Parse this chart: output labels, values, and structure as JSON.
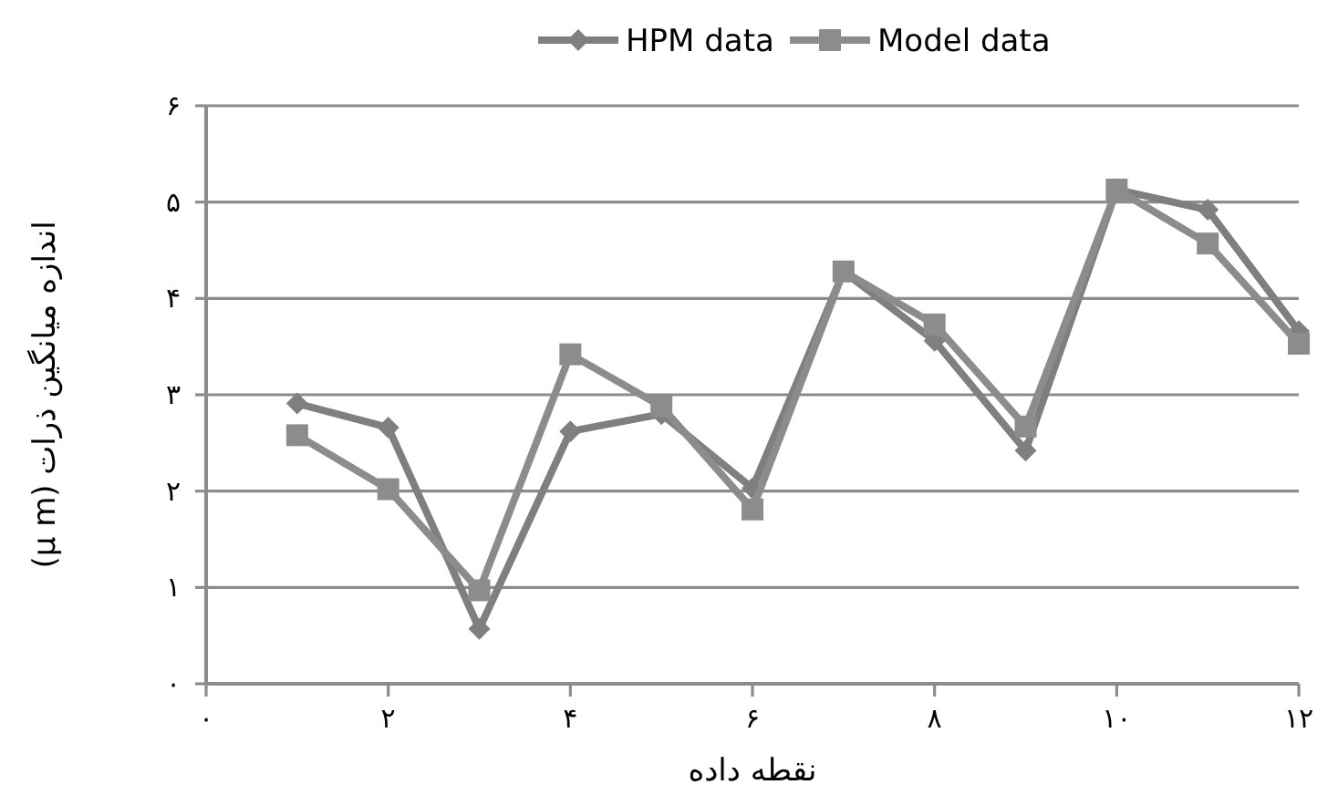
{
  "chart_data": {
    "type": "line",
    "x": [
      1,
      2,
      3,
      4,
      5,
      6,
      7,
      8,
      9,
      10,
      11,
      12
    ],
    "series": [
      {
        "name": "HPM data",
        "color": "#7f7f7f",
        "marker": "diamond",
        "values": [
          2.91,
          2.66,
          0.57,
          2.62,
          2.8,
          2.03,
          4.28,
          3.56,
          2.42,
          5.13,
          4.92,
          3.66
        ]
      },
      {
        "name": "Model data",
        "color": "#8c8c8c",
        "marker": "square",
        "values": [
          2.58,
          2.02,
          0.97,
          3.42,
          2.88,
          1.81,
          4.28,
          3.73,
          2.67,
          5.13,
          4.57,
          3.53
        ]
      }
    ],
    "xlabel": "نقطه داده",
    "ylabel": "اندازه میانگین ذرات (μ m)",
    "xlim": [
      0,
      12
    ],
    "xticks": [
      {
        "value": 0,
        "label": "۰"
      },
      {
        "value": 2,
        "label": "۲"
      },
      {
        "value": 4,
        "label": "۴"
      },
      {
        "value": 6,
        "label": "۶"
      },
      {
        "value": 8,
        "label": "۸"
      },
      {
        "value": 10,
        "label": "۱۰"
      },
      {
        "value": 12,
        "label": "۱۲"
      }
    ],
    "ylim": [
      0,
      6
    ],
    "yticks": [
      {
        "value": 0,
        "label": "۰"
      },
      {
        "value": 1,
        "label": "۱"
      },
      {
        "value": 2,
        "label": "۲"
      },
      {
        "value": 3,
        "label": "۳"
      },
      {
        "value": 4,
        "label": "۴"
      },
      {
        "value": 5,
        "label": "۵"
      },
      {
        "value": 6,
        "label": "۶"
      }
    ],
    "grid": "y",
    "legend": "top",
    "line_style": "solid"
  }
}
